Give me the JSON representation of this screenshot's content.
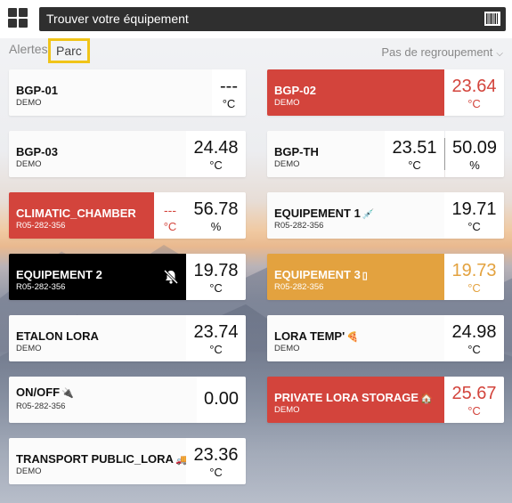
{
  "search": {
    "placeholder": "Trouver votre équipement"
  },
  "tabs": {
    "alertes": "Alertes",
    "parc": "Parc"
  },
  "grouping": {
    "label": "Pas de regroupement"
  },
  "colors": {
    "alert_red": "#d3443c",
    "warning_orange": "#e3a23f",
    "highlight_yellow": "#f0c419"
  },
  "cards": {
    "bgp01": {
      "name": "BGP-01",
      "sub": "DEMO",
      "v1": "---",
      "u1": "°C"
    },
    "bgp02": {
      "name": "BGP-02",
      "sub": "DEMO",
      "v1": "23.64",
      "u1": "°C"
    },
    "bgp03": {
      "name": "BGP-03",
      "sub": "DEMO",
      "v1": "24.48",
      "u1": "°C"
    },
    "bgpth": {
      "name": "BGP-TH",
      "sub": "DEMO",
      "v1": "23.51",
      "u1": "°C",
      "v2": "50.09",
      "u2": "%"
    },
    "climatic": {
      "name": "CLIMATIC_CHAMBER",
      "sub": "R05-282-356",
      "v1": "---",
      "u1": "°C",
      "v2": "56.78",
      "u2": "%"
    },
    "equip1": {
      "name": "EQUIPEMENT 1",
      "emoji": "💉",
      "sub": "R05-282-356",
      "v1": "19.71",
      "u1": "°C"
    },
    "equip2": {
      "name": "EQUIPEMENT 2",
      "sub": "R05-282-356",
      "v1": "19.78",
      "u1": "°C"
    },
    "equip3": {
      "name": "EQUIPEMENT 3",
      "emoji": "▯",
      "sub": "R05-282-356",
      "v1": "19.73",
      "u1": "°C"
    },
    "etalon": {
      "name": "ETALON LORA",
      "sub": "DEMO",
      "v1": "23.74",
      "u1": "°C"
    },
    "loratemp": {
      "name": "LORA TEMP'",
      "emoji": "🍕",
      "sub": "DEMO",
      "v1": "24.98",
      "u1": "°C"
    },
    "onoff": {
      "name": "ON/OFF",
      "emoji": "🔌",
      "sub": "R05-282-356",
      "v1": "0.00"
    },
    "private": {
      "name": "PRIVATE LORA STORAGE",
      "emoji": "🏠",
      "sub": "DEMO",
      "v1": "25.67",
      "u1": "°C"
    },
    "transport": {
      "name": "TRANSPORT PUBLIC_LORA",
      "emoji": "🚚",
      "sub": "DEMO",
      "v1": "23.36",
      "u1": "°C"
    }
  }
}
